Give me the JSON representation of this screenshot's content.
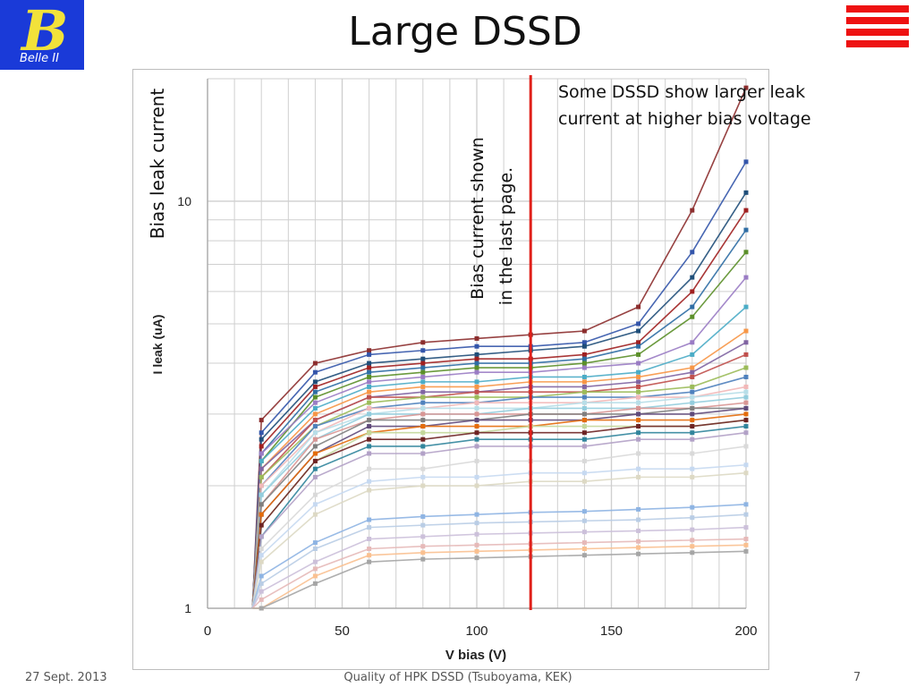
{
  "slide": {
    "title": "Large DSSD",
    "logo_text": "Belle II",
    "logo_letter": "B",
    "footer_left": "27 Sept. 2013",
    "footer_center": "Quality of HPK DSSD (Tsuboyama, KEK)",
    "footer_right": "7"
  },
  "annotations": {
    "side_label": "Bias leak current",
    "vertical_note_line1": "Bias current  shown",
    "vertical_note_line2": "in the last page.",
    "callout_line1": "Some DSSD show larger leak",
    "callout_line2": "current at higher bias voltage"
  },
  "colors": {
    "logo_bg": "#1a3ad8",
    "logo_letter": "#f2e23a",
    "accent_red": "#ee1111",
    "marker_line": "#e0201a"
  },
  "chart_data": {
    "type": "line",
    "xlabel": "V bias (V)",
    "ylabel": "I leak (uA)",
    "xlim": [
      0,
      200
    ],
    "ylim": [
      1,
      20
    ],
    "yscale": "log",
    "x_ticks": [
      0,
      50,
      100,
      150,
      200
    ],
    "y_tick_labels": [
      "1",
      "10"
    ],
    "grid": true,
    "vertical_marker_x": 120,
    "x": [
      20,
      40,
      60,
      80,
      100,
      120,
      140,
      160,
      180,
      200
    ],
    "series": [
      {
        "color": "#8c2e2e",
        "values": [
          2.9,
          4.0,
          4.3,
          4.5,
          4.6,
          4.7,
          4.8,
          5.5,
          9.5,
          19.0
        ]
      },
      {
        "color": "#3355aa",
        "values": [
          2.7,
          3.8,
          4.2,
          4.3,
          4.4,
          4.4,
          4.5,
          5.0,
          7.5,
          12.5
        ]
      },
      {
        "color": "#1f4e79",
        "values": [
          2.6,
          3.6,
          4.0,
          4.1,
          4.2,
          4.3,
          4.4,
          4.8,
          6.5,
          10.5
        ]
      },
      {
        "color": "#a02020",
        "values": [
          2.5,
          3.5,
          3.9,
          4.0,
          4.1,
          4.1,
          4.2,
          4.5,
          6.0,
          9.5
        ]
      },
      {
        "color": "#2e6da4",
        "values": [
          2.4,
          3.4,
          3.8,
          3.9,
          4.0,
          4.0,
          4.1,
          4.4,
          5.5,
          8.5
        ]
      },
      {
        "color": "#5b8f29",
        "values": [
          2.3,
          3.3,
          3.7,
          3.8,
          3.9,
          3.9,
          4.0,
          4.2,
          5.2,
          7.5
        ]
      },
      {
        "color": "#9a7cc4",
        "values": [
          2.4,
          3.2,
          3.6,
          3.7,
          3.8,
          3.8,
          3.9,
          4.0,
          4.5,
          6.5
        ]
      },
      {
        "color": "#4bacc6",
        "values": [
          2.3,
          3.1,
          3.5,
          3.6,
          3.6,
          3.7,
          3.7,
          3.8,
          4.2,
          5.5
        ]
      },
      {
        "color": "#f79646",
        "values": [
          2.2,
          3.0,
          3.4,
          3.5,
          3.5,
          3.6,
          3.6,
          3.7,
          3.9,
          4.8
        ]
      },
      {
        "color": "#8064a2",
        "values": [
          2.2,
          2.9,
          3.3,
          3.4,
          3.4,
          3.5,
          3.5,
          3.6,
          3.8,
          4.5
        ]
      },
      {
        "color": "#c0504d",
        "values": [
          2.1,
          2.9,
          3.3,
          3.3,
          3.4,
          3.4,
          3.4,
          3.5,
          3.7,
          4.2
        ]
      },
      {
        "color": "#9bbb59",
        "values": [
          2.1,
          2.8,
          3.2,
          3.3,
          3.3,
          3.3,
          3.4,
          3.4,
          3.5,
          3.9
        ]
      },
      {
        "color": "#4f81bd",
        "values": [
          2.0,
          2.8,
          3.1,
          3.2,
          3.2,
          3.3,
          3.3,
          3.3,
          3.4,
          3.7
        ]
      },
      {
        "color": "#f2b8b8",
        "values": [
          2.0,
          2.7,
          3.1,
          3.1,
          3.2,
          3.2,
          3.2,
          3.3,
          3.3,
          3.5
        ]
      },
      {
        "color": "#b7dee8",
        "values": [
          1.9,
          2.7,
          3.0,
          3.1,
          3.1,
          3.1,
          3.2,
          3.2,
          3.3,
          3.4
        ]
      },
      {
        "color": "#93cddd",
        "values": [
          1.9,
          2.6,
          3.0,
          3.0,
          3.0,
          3.1,
          3.1,
          3.1,
          3.2,
          3.3
        ]
      },
      {
        "color": "#d99694",
        "values": [
          1.8,
          2.6,
          2.9,
          3.0,
          3.0,
          3.0,
          3.0,
          3.1,
          3.1,
          3.2
        ]
      },
      {
        "color": "#7f7f7f",
        "values": [
          1.8,
          2.5,
          2.9,
          2.9,
          2.9,
          3.0,
          3.0,
          3.0,
          3.1,
          3.1
        ]
      },
      {
        "color": "#604a7b",
        "values": [
          1.7,
          2.4,
          2.8,
          2.8,
          2.9,
          2.9,
          2.9,
          3.0,
          3.0,
          3.1
        ]
      },
      {
        "color": "#e46c0a",
        "values": [
          1.7,
          2.4,
          2.7,
          2.8,
          2.8,
          2.8,
          2.9,
          2.9,
          2.9,
          3.0
        ]
      },
      {
        "color": "#c4d79b",
        "values": [
          1.6,
          2.3,
          2.7,
          2.7,
          2.7,
          2.8,
          2.8,
          2.8,
          2.8,
          2.9
        ]
      },
      {
        "color": "#6e2323",
        "values": [
          1.6,
          2.3,
          2.6,
          2.6,
          2.7,
          2.7,
          2.7,
          2.8,
          2.8,
          2.9
        ]
      },
      {
        "color": "#31859c",
        "values": [
          1.5,
          2.2,
          2.5,
          2.5,
          2.6,
          2.6,
          2.6,
          2.7,
          2.7,
          2.8
        ]
      },
      {
        "color": "#b2a1c7",
        "values": [
          1.5,
          2.1,
          2.4,
          2.4,
          2.5,
          2.5,
          2.5,
          2.6,
          2.6,
          2.7
        ]
      },
      {
        "color": "#d9d9d9",
        "values": [
          1.4,
          1.9,
          2.2,
          2.2,
          2.3,
          2.3,
          2.3,
          2.4,
          2.4,
          2.5
        ]
      },
      {
        "color": "#c6d9f1",
        "values": [
          1.35,
          1.8,
          2.05,
          2.1,
          2.1,
          2.15,
          2.15,
          2.2,
          2.2,
          2.25
        ]
      },
      {
        "color": "#ddd9c4",
        "values": [
          1.3,
          1.7,
          1.95,
          2.0,
          2.0,
          2.05,
          2.05,
          2.1,
          2.1,
          2.15
        ]
      },
      {
        "color": "#8eb4e3",
        "values": [
          1.2,
          1.45,
          1.65,
          1.68,
          1.7,
          1.72,
          1.73,
          1.75,
          1.77,
          1.8
        ]
      },
      {
        "color": "#b9cde5",
        "values": [
          1.15,
          1.4,
          1.58,
          1.6,
          1.62,
          1.63,
          1.64,
          1.65,
          1.67,
          1.7
        ]
      },
      {
        "color": "#ccc0da",
        "values": [
          1.1,
          1.3,
          1.48,
          1.5,
          1.52,
          1.53,
          1.54,
          1.55,
          1.56,
          1.58
        ]
      },
      {
        "color": "#e6b9b8",
        "values": [
          1.05,
          1.25,
          1.4,
          1.42,
          1.43,
          1.44,
          1.45,
          1.46,
          1.47,
          1.48
        ]
      },
      {
        "color": "#fac090",
        "values": [
          1.0,
          1.2,
          1.35,
          1.37,
          1.38,
          1.39,
          1.4,
          1.41,
          1.42,
          1.43
        ]
      },
      {
        "color": "#a5a5a5",
        "values": [
          1.0,
          1.15,
          1.3,
          1.32,
          1.33,
          1.34,
          1.35,
          1.36,
          1.37,
          1.38
        ]
      }
    ]
  }
}
